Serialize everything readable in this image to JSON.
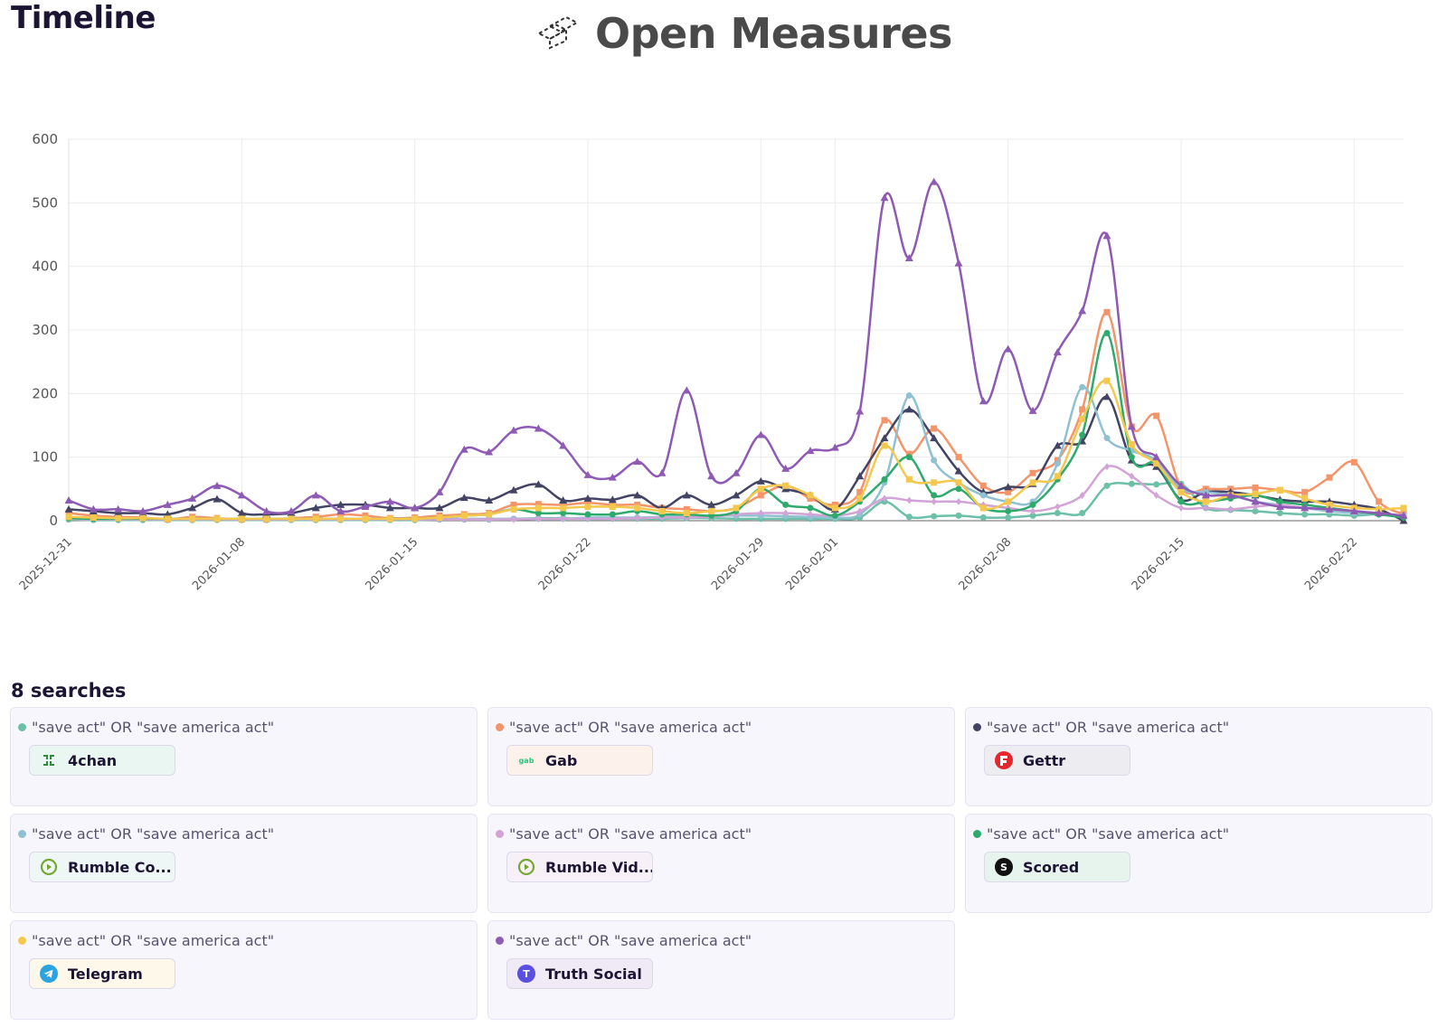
{
  "page": {
    "title": "Timeline"
  },
  "brand": {
    "name": "Open Measures",
    "logo_icon": "open-measures-logo-icon"
  },
  "searches": {
    "title": "8 searches",
    "items": [
      {
        "query": "\"save act\" OR \"save america act\"",
        "platform": "4chan",
        "color": "#6cc0a8",
        "tag_bg": "#eaf6f1",
        "icon": "4chan-icon"
      },
      {
        "query": "\"save act\" OR \"save america act\"",
        "platform": "Gab",
        "color": "#f4946a",
        "tag_bg": "#fdf1ec",
        "icon": "gab-icon"
      },
      {
        "query": "\"save act\" OR \"save america act\"",
        "platform": "Gettr",
        "color": "#434463",
        "tag_bg": "#edecf1",
        "icon": "gettr-icon"
      },
      {
        "query": "\"save act\" OR \"save america act\"",
        "platform": "Rumble Co...",
        "color": "#90c1d2",
        "tag_bg": "#eef6f6",
        "icon": "rumble-icon"
      },
      {
        "query": "\"save act\" OR \"save america act\"",
        "platform": "Rumble Vid...",
        "color": "#d2a3d6",
        "tag_bg": "#f7f0f8",
        "icon": "rumble-icon"
      },
      {
        "query": "\"save act\" OR \"save america act\"",
        "platform": "Scored",
        "color": "#2eaa6c",
        "tag_bg": "#e6f4ed",
        "icon": "scored-icon"
      },
      {
        "query": "\"save act\" OR \"save america act\"",
        "platform": "Telegram",
        "color": "#f4c84f",
        "tag_bg": "#fdf8e9",
        "icon": "telegram-icon"
      },
      {
        "query": "\"save act\" OR \"save america act\"",
        "platform": "Truth Social",
        "color": "#8e5ab4",
        "tag_bg": "#efeaf6",
        "icon": "truth-social-icon"
      }
    ]
  },
  "chart_data": {
    "type": "line",
    "title": "",
    "xlabel": "",
    "ylabel": "",
    "ylim": [
      0,
      600
    ],
    "y_ticks": [
      0,
      100,
      200,
      300,
      400,
      500,
      600
    ],
    "x_start": "2025-12-31",
    "x_ticks": [
      {
        "day": 0,
        "label": "2025-12-31"
      },
      {
        "day": 7,
        "label": "2026-01-08"
      },
      {
        "day": 14,
        "label": "2026-01-15"
      },
      {
        "day": 21,
        "label": "2026-01-22"
      },
      {
        "day": 28,
        "label": "2026-01-29"
      },
      {
        "day": 31,
        "label": "2026-02-01"
      },
      {
        "day": 38,
        "label": "2026-02-08"
      },
      {
        "day": 45,
        "label": "2026-02-15"
      },
      {
        "day": 52,
        "label": "2026-02-22"
      }
    ],
    "day_count": 54,
    "grid": true,
    "legend": "none",
    "series": [
      {
        "name": "4chan",
        "color": "#6cc0a8",
        "marker": "circle",
        "values": [
          2,
          1,
          1,
          1,
          1,
          1,
          1,
          1,
          1,
          1,
          1,
          1,
          1,
          1,
          1,
          2,
          2,
          2,
          3,
          4,
          4,
          3,
          3,
          3,
          3,
          4,
          4,
          3,
          3,
          3,
          3,
          3,
          5,
          30,
          6,
          7,
          8,
          5,
          5,
          8,
          12,
          12,
          55,
          58,
          57,
          58,
          20,
          17,
          15,
          12,
          10,
          10,
          8,
          10,
          6
        ]
      },
      {
        "name": "Gab",
        "color": "#f4946a",
        "marker": "square",
        "values": [
          12,
          8,
          6,
          5,
          2,
          6,
          4,
          2,
          2,
          4,
          6,
          10,
          8,
          4,
          5,
          8,
          10,
          12,
          25,
          26,
          25,
          28,
          25,
          25,
          20,
          18,
          15,
          20,
          40,
          55,
          35,
          25,
          45,
          158,
          105,
          145,
          100,
          55,
          45,
          75,
          95,
          175,
          328,
          148,
          165,
          52,
          50,
          50,
          52,
          48,
          45,
          68,
          92,
          30,
          10
        ]
      },
      {
        "name": "Gettr",
        "color": "#434463",
        "marker": "triangle",
        "values": [
          18,
          15,
          12,
          12,
          10,
          20,
          34,
          12,
          10,
          12,
          20,
          25,
          25,
          20,
          20,
          20,
          36,
          32,
          48,
          57,
          32,
          35,
          33,
          40,
          20,
          40,
          25,
          40,
          62,
          50,
          40,
          18,
          70,
          130,
          175,
          130,
          78,
          45,
          53,
          58,
          118,
          125,
          195,
          95,
          85,
          33,
          45,
          45,
          40,
          33,
          30,
          30,
          25,
          18,
          0
        ]
      },
      {
        "name": "Rumble Co...",
        "color": "#90c1d2",
        "marker": "circle",
        "values": [
          5,
          4,
          3,
          3,
          3,
          2,
          2,
          2,
          2,
          2,
          2,
          3,
          3,
          3,
          3,
          3,
          3,
          3,
          3,
          3,
          3,
          5,
          5,
          5,
          6,
          7,
          8,
          8,
          8,
          7,
          6,
          5,
          10,
          60,
          197,
          95,
          60,
          40,
          30,
          30,
          90,
          210,
          130,
          110,
          95,
          50,
          45,
          40,
          30,
          25,
          20,
          15,
          12,
          10,
          8
        ]
      },
      {
        "name": "Rumble Vid...",
        "color": "#d2a3d6",
        "marker": "diamond",
        "values": [
          3,
          2,
          2,
          2,
          2,
          2,
          2,
          2,
          2,
          2,
          2,
          2,
          2,
          2,
          2,
          2,
          2,
          2,
          2,
          3,
          3,
          3,
          3,
          4,
          5,
          5,
          6,
          10,
          12,
          12,
          10,
          8,
          15,
          35,
          32,
          30,
          30,
          25,
          20,
          15,
          22,
          40,
          85,
          70,
          40,
          20,
          20,
          18,
          22,
          25,
          20,
          18,
          15,
          10,
          8
        ]
      },
      {
        "name": "Scored",
        "color": "#2eaa6c",
        "marker": "circle",
        "values": [
          4,
          3,
          3,
          3,
          3,
          3,
          3,
          3,
          3,
          3,
          3,
          3,
          3,
          3,
          3,
          5,
          8,
          10,
          18,
          12,
          12,
          10,
          10,
          15,
          10,
          10,
          8,
          15,
          50,
          25,
          20,
          8,
          30,
          65,
          100,
          40,
          50,
          20,
          15,
          25,
          65,
          135,
          295,
          100,
          90,
          30,
          30,
          35,
          40,
          30,
          25,
          20,
          15,
          10,
          5
        ]
      },
      {
        "name": "Telegram",
        "color": "#f4c84f",
        "marker": "square",
        "values": [
          6,
          5,
          4,
          4,
          3,
          3,
          3,
          3,
          3,
          3,
          3,
          3,
          3,
          3,
          3,
          5,
          8,
          10,
          18,
          20,
          20,
          22,
          22,
          20,
          15,
          12,
          15,
          20,
          50,
          55,
          40,
          20,
          35,
          118,
          65,
          60,
          60,
          20,
          30,
          60,
          70,
          160,
          220,
          120,
          90,
          45,
          30,
          40,
          42,
          48,
          35,
          25,
          20,
          18,
          20
        ]
      },
      {
        "name": "Truth Social",
        "color": "#8e5ab4",
        "marker": "triangle",
        "values": [
          32,
          18,
          18,
          15,
          25,
          35,
          55,
          40,
          15,
          15,
          40,
          15,
          22,
          30,
          20,
          45,
          112,
          108,
          142,
          145,
          118,
          72,
          68,
          93,
          75,
          205,
          70,
          75,
          135,
          82,
          110,
          115,
          172,
          508,
          413,
          533,
          405,
          188,
          270,
          173,
          265,
          330,
          448,
          148,
          100,
          55,
          40,
          40,
          30,
          22,
          20,
          18,
          15,
          12,
          8
        ]
      }
    ]
  }
}
